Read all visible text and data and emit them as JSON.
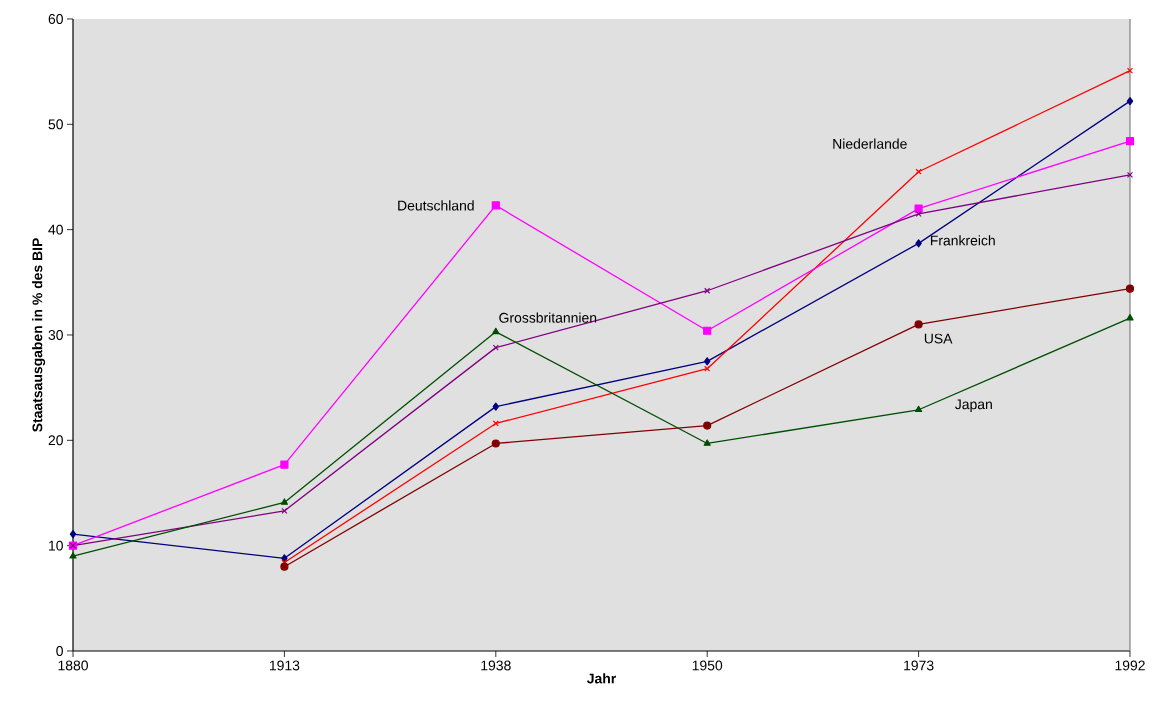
{
  "chart_data": {
    "type": "line",
    "xlabel": "Jahr",
    "ylabel": "Staatsausgaben in % des BIP",
    "categories": [
      "1880",
      "1913",
      "1938",
      "1950",
      "1973",
      "1992"
    ],
    "ylim": [
      0,
      60
    ],
    "yticks": [
      0,
      10,
      20,
      30,
      40,
      50,
      60
    ],
    "grid": false,
    "legend": false,
    "line_style": "solid",
    "series": [
      {
        "name": "Frankreich",
        "color": "#000080",
        "marker": "diamond",
        "values": [
          11.1,
          8.8,
          23.2,
          27.5,
          38.7,
          52.2
        ]
      },
      {
        "name": "Niederlande",
        "color": "#ff0000",
        "marker": "cross",
        "values": [
          null,
          8.4,
          21.6,
          26.8,
          45.5,
          55.1
        ]
      },
      {
        "name": "Deutschland",
        "color": "#ff00ff",
        "marker": "square",
        "values": [
          10.0,
          17.7,
          42.3,
          30.4,
          42.0,
          48.4
        ]
      },
      {
        "name": "Grossbritannien",
        "color": "#800080",
        "marker": "cross",
        "values": [
          10.0,
          13.3,
          28.8,
          34.2,
          41.5,
          45.2
        ]
      },
      {
        "name": "USA",
        "color": "#800000",
        "marker": "circle",
        "values": [
          null,
          8.0,
          19.7,
          21.4,
          31.0,
          34.4
        ]
      },
      {
        "name": "Japan",
        "color": "#004d00",
        "marker": "triangle",
        "values": [
          9.0,
          14.1,
          30.3,
          19.7,
          22.9,
          31.6
        ]
      }
    ]
  }
}
